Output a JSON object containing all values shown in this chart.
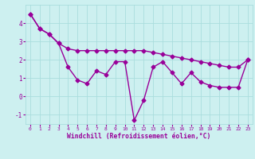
{
  "line1": {
    "x": [
      0,
      1,
      2,
      3,
      4,
      5,
      6,
      7,
      8,
      9,
      10,
      11,
      12,
      13,
      14,
      15,
      16,
      17,
      18,
      19,
      20,
      21,
      22,
      23
    ],
    "y": [
      4.5,
      3.7,
      3.4,
      2.9,
      1.6,
      0.9,
      0.7,
      1.4,
      1.2,
      1.9,
      1.9,
      -1.3,
      -0.2,
      1.6,
      1.9,
      1.3,
      0.7,
      1.3,
      0.8,
      0.6,
      0.5,
      0.5,
      0.5,
      2.0
    ]
  },
  "line2": {
    "x": [
      0,
      1,
      2,
      3,
      4,
      5,
      6,
      7,
      8,
      9,
      10,
      11,
      12,
      13,
      14,
      15,
      16,
      17,
      18,
      19,
      20,
      21,
      22,
      23
    ],
    "y": [
      4.5,
      3.7,
      3.4,
      2.9,
      2.6,
      2.5,
      2.5,
      2.5,
      2.5,
      2.5,
      2.5,
      2.5,
      2.5,
      2.4,
      2.3,
      2.2,
      2.1,
      2.0,
      1.9,
      1.8,
      1.7,
      1.6,
      1.6,
      2.0
    ]
  },
  "line_color": "#990099",
  "marker": "D",
  "markersize": 2.5,
  "linewidth": 1.0,
  "xlabel": "Windchill (Refroidissement éolien,°C)",
  "xlim": [
    -0.5,
    23.5
  ],
  "ylim": [
    -1.5,
    5.0
  ],
  "yticks": [
    -1,
    0,
    1,
    2,
    3,
    4
  ],
  "xticks": [
    0,
    1,
    2,
    3,
    4,
    5,
    6,
    7,
    8,
    9,
    10,
    11,
    12,
    13,
    14,
    15,
    16,
    17,
    18,
    19,
    20,
    21,
    22,
    23
  ],
  "background_color": "#cdf0f0",
  "grid_color": "#aadddd",
  "tick_color": "#990099",
  "label_color": "#990099"
}
